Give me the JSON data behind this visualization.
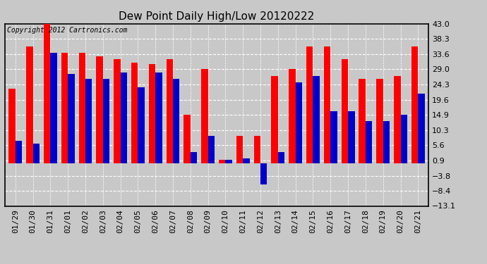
{
  "title": "Dew Point Daily High/Low 20120222",
  "copyright": "Copyright 2012 Cartronics.com",
  "dates": [
    "01/29",
    "01/30",
    "01/31",
    "02/01",
    "02/02",
    "02/03",
    "02/04",
    "02/05",
    "02/06",
    "02/07",
    "02/08",
    "02/09",
    "02/10",
    "02/11",
    "02/12",
    "02/13",
    "02/14",
    "02/15",
    "02/16",
    "02/17",
    "02/18",
    "02/19",
    "02/20",
    "02/21"
  ],
  "highs": [
    23.0,
    36.0,
    43.0,
    34.0,
    34.0,
    33.0,
    32.0,
    31.0,
    30.5,
    32.0,
    15.0,
    29.0,
    1.0,
    8.5,
    8.5,
    27.0,
    29.0,
    36.0,
    36.0,
    32.0,
    26.0,
    26.0,
    27.0,
    36.0
  ],
  "lows": [
    7.0,
    6.0,
    34.0,
    27.5,
    26.0,
    26.0,
    28.0,
    23.5,
    28.0,
    26.0,
    3.5,
    8.5,
    1.0,
    1.5,
    -6.5,
    3.5,
    25.0,
    27.0,
    16.0,
    16.0,
    13.0,
    13.0,
    15.0,
    21.5
  ],
  "high_color": "#ff0000",
  "low_color": "#0000cc",
  "bg_color": "#c8c8c8",
  "plot_bg_color": "#c8c8c8",
  "grid_color": "#ffffff",
  "ymin": -13.1,
  "ymax": 43.0,
  "yticks": [
    -13.1,
    -8.4,
    -3.8,
    0.9,
    5.6,
    10.3,
    14.9,
    19.6,
    24.3,
    29.0,
    33.6,
    38.3,
    43.0
  ],
  "title_fontsize": 11,
  "tick_fontsize": 8,
  "copyright_fontsize": 7
}
